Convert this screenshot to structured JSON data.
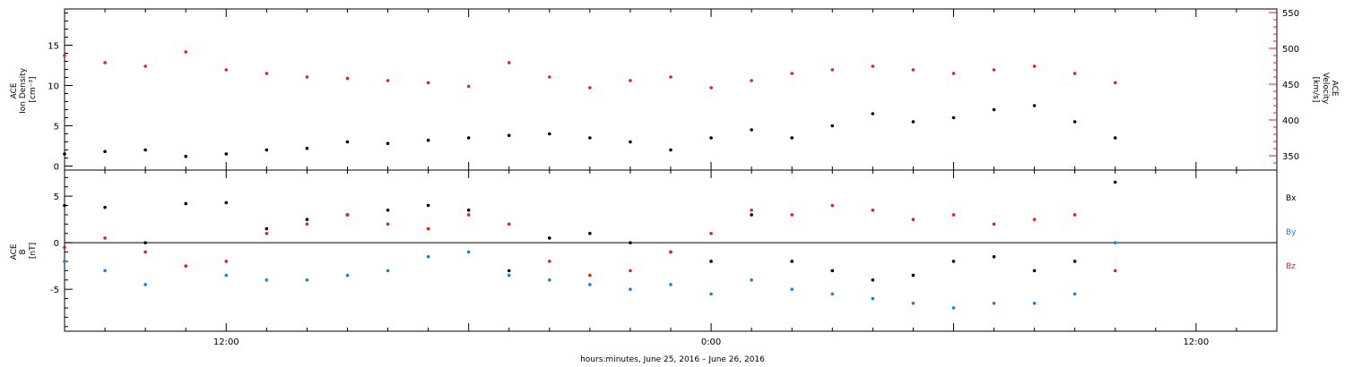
{
  "footer": {
    "time_axis_title": "hours:minutes, June 25, 2016 – June 26, 2016"
  },
  "x_axis": {
    "tick_labels": [
      "12:00",
      "0:00",
      "12:00"
    ]
  },
  "colors": {
    "black": "#000000",
    "red": "#e62020",
    "blue": "#1f7fd6"
  },
  "chart_data": [
    {
      "type": "scatter",
      "panel": "top",
      "x_range_hours": [
        -16,
        14
      ],
      "ylabel_left": [
        "ACE",
        "Ion Density",
        "[cm⁻³]"
      ],
      "ylabel_right": [
        "ACE",
        "Velocity",
        "[km/s]"
      ],
      "left_axis": {
        "ylim": [
          -0.5,
          19.5
        ],
        "tick_labels": [
          "0",
          "5",
          "10",
          "15"
        ],
        "tick_values": [
          0,
          5,
          10,
          15
        ]
      },
      "right_axis": {
        "ylim": [
          330,
          555
        ],
        "tick_labels": [
          "350",
          "400",
          "450",
          "500",
          "550"
        ],
        "tick_values": [
          350,
          400,
          450,
          500,
          550
        ]
      },
      "series": [
        {
          "key": "density",
          "color": "black",
          "axis": "left",
          "x": [
            -16,
            -15,
            -14,
            -13,
            -12,
            -11,
            -10,
            -9,
            -8,
            -7,
            -6,
            -5,
            -4,
            -3,
            -2,
            -1,
            0,
            1,
            2,
            3,
            4,
            5,
            6,
            7,
            8,
            9,
            10
          ],
          "y": [
            1.5,
            1.8,
            2.0,
            1.2,
            1.5,
            2.0,
            2.2,
            3.0,
            2.8,
            3.2,
            3.5,
            3.8,
            4.0,
            3.5,
            3.0,
            2.0,
            3.5,
            4.5,
            3.5,
            5.0,
            6.5,
            5.5,
            6.0,
            7.0,
            7.5,
            5.5,
            3.5
          ]
        },
        {
          "key": "velocity",
          "color": "red",
          "axis": "right",
          "x": [
            -16,
            -15,
            -14,
            -13,
            -12,
            -11,
            -10,
            -9,
            -8,
            -7,
            -6,
            -5,
            -4,
            -3,
            -2,
            -1,
            0,
            1,
            2,
            3,
            4,
            5,
            6,
            7,
            8,
            9,
            10
          ],
          "y": [
            490,
            480,
            475,
            495,
            470,
            465,
            460,
            458,
            455,
            452,
            447,
            480,
            460,
            445,
            455,
            460,
            445,
            455,
            465,
            470,
            475,
            470,
            465,
            470,
            475,
            465,
            452
          ]
        }
      ]
    },
    {
      "type": "scatter",
      "panel": "bottom",
      "x_range_hours": [
        -16,
        14
      ],
      "ylabel_left": [
        "ACE",
        "B",
        "[nT]"
      ],
      "ylim": [
        -9.5,
        7.8
      ],
      "tick_labels": [
        "-5",
        "0",
        "5"
      ],
      "tick_values": [
        -5,
        0,
        5
      ],
      "series": [
        {
          "key": "bx",
          "name": "Bx",
          "color": "black",
          "x": [
            -16,
            -15,
            -14,
            -13,
            -12,
            -11,
            -10,
            -9,
            -8,
            -7,
            -6,
            -5,
            -4,
            -3,
            -2,
            -1,
            0,
            1,
            2,
            3,
            4,
            5,
            6,
            7,
            8,
            9,
            10
          ],
          "y": [
            4.0,
            3.8,
            0.0,
            4.2,
            4.3,
            1.5,
            2.5,
            3.0,
            3.5,
            4.0,
            3.5,
            -3.0,
            0.5,
            1.0,
            0.0,
            -1.0,
            -2.0,
            3.0,
            -2.0,
            -3.0,
            -4.0,
            -3.5,
            -2.0,
            -1.5,
            -3.0,
            -2.0,
            6.5
          ]
        },
        {
          "key": "by",
          "name": "By",
          "color": "blue",
          "x": [
            -16,
            -15,
            -14,
            -13,
            -12,
            -11,
            -10,
            -9,
            -8,
            -7,
            -6,
            -5,
            -4,
            -3,
            -2,
            -1,
            0,
            1,
            2,
            3,
            4,
            5,
            6,
            7,
            8,
            9,
            10
          ],
          "y": [
            -2.0,
            -3.0,
            -4.5,
            -2.5,
            -3.5,
            -4.0,
            -4.0,
            -3.5,
            -3.0,
            -1.5,
            -1.0,
            -3.5,
            -4.0,
            -4.5,
            -5.0,
            -4.5,
            -5.5,
            -4.0,
            -5.0,
            -5.5,
            -6.0,
            -6.5,
            -7.0,
            -6.5,
            -6.5,
            -5.5,
            0.0
          ]
        },
        {
          "key": "bz",
          "name": "Bz",
          "color": "red",
          "x": [
            -16,
            -15,
            -14,
            -13,
            -12,
            -11,
            -10,
            -9,
            -8,
            -7,
            -6,
            -5,
            -4,
            -3,
            -2,
            -1,
            0,
            1,
            2,
            3,
            4,
            5,
            6,
            7,
            8,
            9,
            10
          ],
          "y": [
            -0.5,
            0.5,
            -1.0,
            -2.5,
            -2.0,
            1.0,
            2.0,
            3.0,
            2.0,
            1.5,
            3.0,
            2.0,
            -2.0,
            -3.5,
            -3.0,
            -1.0,
            1.0,
            3.5,
            3.0,
            4.0,
            3.5,
            2.5,
            3.0,
            2.0,
            2.5,
            3.0,
            -3.0
          ]
        }
      ]
    }
  ]
}
